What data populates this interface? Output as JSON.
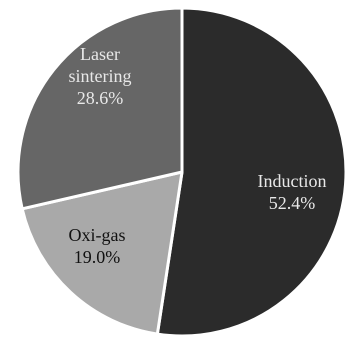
{
  "chart_data": {
    "type": "pie",
    "slices": [
      {
        "label_lines": [
          "Induction"
        ],
        "value": 52.4,
        "value_text": "52.4%",
        "color": "#2b2b2b"
      },
      {
        "label_lines": [
          "Oxi-gas"
        ],
        "value": 19.0,
        "value_text": "19.0%",
        "color": "#a9a9a9"
      },
      {
        "label_lines": [
          "Laser",
          "sintering"
        ],
        "value": 28.6,
        "value_text": "28.6%",
        "color": "#666666"
      }
    ],
    "start_angle_deg": 0,
    "direction": "clockwise",
    "slice_edge_color": "#ffffff",
    "background_color": "#ffffff"
  }
}
